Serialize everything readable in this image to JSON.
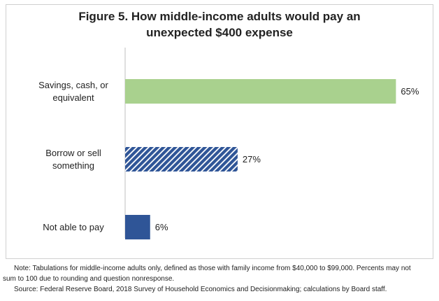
{
  "chart_data": {
    "type": "hbar",
    "title": "Figure 5.  How middle-income adults would pay an unexpected $400 expense",
    "categories": [
      "Savings, cash, or equivalent",
      "Borrow or sell something",
      "Not able to pay"
    ],
    "values": [
      65,
      27,
      6
    ],
    "value_labels": [
      "65%",
      "27%",
      "6%"
    ],
    "colors": [
      "#a9d18e",
      "#2f5597",
      "#2f5597"
    ],
    "hatch": [
      false,
      true,
      false
    ],
    "note": "Note:  Tabulations for middle-income adults only, defined as those with family income from $40,000 to $99,000. Percents may not sum to 100 due to rounding and question nonresponse.",
    "source": "Source:  Federal Reserve Board, 2018 Survey of Household Economics and Decisionmaking; calculations by Board staff."
  }
}
